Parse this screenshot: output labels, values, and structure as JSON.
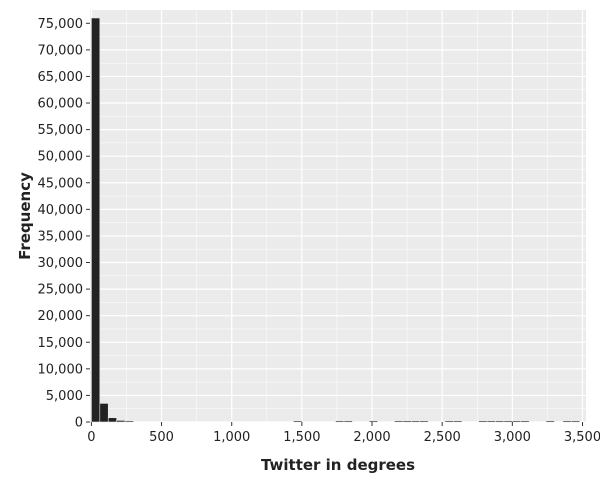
{
  "chart_data": {
    "type": "bar",
    "title": "",
    "xlabel": "Twitter in degrees",
    "ylabel": "Frequency",
    "xlim": [
      -10,
      3525
    ],
    "ylim": [
      0,
      77500
    ],
    "grid": true,
    "x_ticks": [
      {
        "value": 0,
        "label": "0"
      },
      {
        "value": 500,
        "label": "500"
      },
      {
        "value": 1000,
        "label": "1,000"
      },
      {
        "value": 1500,
        "label": "1,500"
      },
      {
        "value": 2000,
        "label": "2,000"
      },
      {
        "value": 2500,
        "label": "2,500"
      },
      {
        "value": 3000,
        "label": "3,000"
      },
      {
        "value": 3500,
        "label": "3,500"
      }
    ],
    "y_ticks": [
      {
        "value": 0,
        "label": "0"
      },
      {
        "value": 5000,
        "label": "5,000"
      },
      {
        "value": 10000,
        "label": "10,000"
      },
      {
        "value": 15000,
        "label": "15,000"
      },
      {
        "value": 20000,
        "label": "20,000"
      },
      {
        "value": 25000,
        "label": "25,000"
      },
      {
        "value": 30000,
        "label": "30,000"
      },
      {
        "value": 35000,
        "label": "35,000"
      },
      {
        "value": 40000,
        "label": "40,000"
      },
      {
        "value": 45000,
        "label": "45,000"
      },
      {
        "value": 50000,
        "label": "50,000"
      },
      {
        "value": 55000,
        "label": "55,000"
      },
      {
        "value": 60000,
        "label": "60,000"
      },
      {
        "value": 65000,
        "label": "65,000"
      },
      {
        "value": 70000,
        "label": "70,000"
      },
      {
        "value": 75000,
        "label": "75,000"
      }
    ],
    "bin_width": 60,
    "bins": [
      {
        "x0": 0,
        "x1": 60,
        "value": 76000
      },
      {
        "x0": 60,
        "x1": 120,
        "value": 3500
      },
      {
        "x0": 120,
        "x1": 180,
        "value": 800
      },
      {
        "x0": 180,
        "x1": 240,
        "value": 300
      },
      {
        "x0": 240,
        "x1": 300,
        "value": 100
      },
      {
        "x0": 1440,
        "x1": 1500,
        "value": 20
      },
      {
        "x0": 1740,
        "x1": 1800,
        "value": 20
      },
      {
        "x0": 1800,
        "x1": 1860,
        "value": 20
      },
      {
        "x0": 1980,
        "x1": 2040,
        "value": 20
      },
      {
        "x0": 2160,
        "x1": 2220,
        "value": 20
      },
      {
        "x0": 2220,
        "x1": 2280,
        "value": 20
      },
      {
        "x0": 2280,
        "x1": 2340,
        "value": 20
      },
      {
        "x0": 2340,
        "x1": 2400,
        "value": 20
      },
      {
        "x0": 2520,
        "x1": 2580,
        "value": 20
      },
      {
        "x0": 2580,
        "x1": 2640,
        "value": 20
      },
      {
        "x0": 2760,
        "x1": 2820,
        "value": 20
      },
      {
        "x0": 2820,
        "x1": 2880,
        "value": 20
      },
      {
        "x0": 2880,
        "x1": 2940,
        "value": 20
      },
      {
        "x0": 2940,
        "x1": 3000,
        "value": 20
      },
      {
        "x0": 3000,
        "x1": 3060,
        "value": 20
      },
      {
        "x0": 3060,
        "x1": 3120,
        "value": 20
      },
      {
        "x0": 3240,
        "x1": 3300,
        "value": 20
      },
      {
        "x0": 3360,
        "x1": 3420,
        "value": 20
      },
      {
        "x0": 3420,
        "x1": 3480,
        "value": 20
      }
    ],
    "colors": {
      "panel": "#ebebeb",
      "grid": "#ffffff",
      "bar_fill": "#222222",
      "bar_stroke": "#ebebeb",
      "tick": "#333333",
      "text": "#222222"
    }
  }
}
